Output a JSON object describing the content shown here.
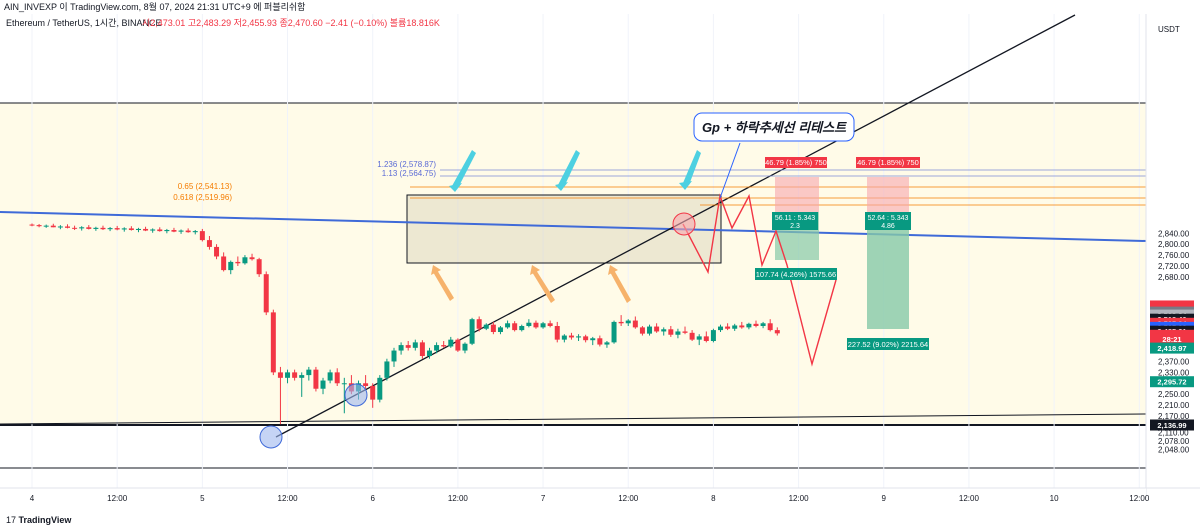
{
  "header": {
    "top_line": "AIN_INVEXP 이 TradingView.com, 8월 07, 2024 21:31 UTC+9 에 퍼블리쉬함",
    "symbol_line": "Ethereum / TetherUS, 1시간, BINANCE",
    "ohlc": "시2,473.01 고2,483.29 저2,455.93 종2,470.60 −2.41 (−0.10%) 볼륨18.816K"
  },
  "footer": {
    "brand_prefix": "17",
    "brand": "TradingView"
  },
  "annotations": {
    "callout": "Gp + 하락추세선 리테스트",
    "fib_1236": "1.236 (2,578.87)",
    "fib_113": "1.13 (2,564.75)",
    "fib_065": "0.65 (2,541.13)",
    "fib_0618": "0.618 (2,519.96)",
    "pos1_top": "46.79 (1.85%) 750",
    "pos1_mid1": "56.11 : 5.343",
    "pos1_mid2": "2.3",
    "pos1_bottom": "107.74 (4.26%) 1575.66",
    "pos2_top": "46.79 (1.85%) 750",
    "pos2_mid1": "52.64 : 5.343",
    "pos2_mid2": "4.86",
    "pos2_bottom": "227.52 (9.02%) 2215.64"
  },
  "colors": {
    "up": "#089981",
    "down": "#f23645",
    "trend": "#131722",
    "blue": "#3f6ad8",
    "fib_orange": "#f57c00",
    "cyan": "#4dd0e1",
    "arrow_orange": "#f6b26b",
    "accent": "#2962ff"
  },
  "chart_data": {
    "type": "candlestick",
    "title": "Ethereum / TetherUS, 1시간, BINANCE",
    "currency": "USDT",
    "ylim": [
      2030,
      2900
    ],
    "y_ticks": [
      2048.0,
      2078.0,
      2110.0,
      2170.0,
      2210.0,
      2250.0,
      2330.0,
      2370.0,
      2680.0,
      2720.0,
      2760.0,
      2800.0,
      2840.0
    ],
    "x_ticks": [
      {
        "label": "4",
        "t": 0
      },
      {
        "label": "12:00",
        "t": 12
      },
      {
        "label": "5",
        "t": 24
      },
      {
        "label": "12:00",
        "t": 36
      },
      {
        "label": "6",
        "t": 48
      },
      {
        "label": "12:00",
        "t": 60
      },
      {
        "label": "7",
        "t": 72
      },
      {
        "label": "12:00",
        "t": 84
      },
      {
        "label": "8",
        "t": 96
      },
      {
        "label": "12:00",
        "t": 108
      },
      {
        "label": "9",
        "t": 120
      },
      {
        "label": "12:00",
        "t": 132
      },
      {
        "label": "10",
        "t": 144
      },
      {
        "label": "12:00",
        "t": 156
      }
    ],
    "price_labels": [
      {
        "label": "2,573.50",
        "price": 2573.5,
        "color": "#f23645"
      },
      {
        "label": "2,570.03",
        "price": 2562.0,
        "color": "#f23645"
      },
      {
        "label": "2,526.71",
        "price": 2551.0,
        "color": "#787b86"
      },
      {
        "label": "2,523.24",
        "price": 2540.0,
        "color": "#b2b5be"
      },
      {
        "label": "2,518.40",
        "price": 2525.0,
        "color": "#131722"
      },
      {
        "label": "2,505.84",
        "price": 2510.0,
        "color": "#f23645"
      },
      {
        "label": "2,505.08",
        "price": 2495.0,
        "color": "#2962ff"
      },
      {
        "label": "2,485.21",
        "price": 2481.0,
        "color": "#131722"
      },
      {
        "label": "2,470.60",
        "price": 2466.0,
        "color": "#f23645"
      },
      {
        "label": "28:21",
        "price": 2453.0,
        "color": "#f23645"
      },
      {
        "label": "2,418.97",
        "price": 2418.97,
        "color": "#089981"
      },
      {
        "label": "2,295.72",
        "price": 2295.72,
        "color": "#089981"
      },
      {
        "label": "2,136.99",
        "price": 2136.99,
        "color": "#131722"
      }
    ],
    "candles": [
      [
        0,
        2872,
        2876,
        2866,
        2870
      ],
      [
        1,
        2870,
        2874,
        2862,
        2866
      ],
      [
        2,
        2866,
        2872,
        2860,
        2868
      ],
      [
        3,
        2868,
        2875,
        2862,
        2862
      ],
      [
        4,
        2862,
        2870,
        2855,
        2865
      ],
      [
        5,
        2865,
        2873,
        2858,
        2860
      ],
      [
        6,
        2860,
        2868,
        2852,
        2858
      ],
      [
        7,
        2858,
        2866,
        2850,
        2862
      ],
      [
        8,
        2862,
        2870,
        2854,
        2856
      ],
      [
        9,
        2856,
        2864,
        2849,
        2860
      ],
      [
        10,
        2860,
        2868,
        2852,
        2855
      ],
      [
        11,
        2855,
        2863,
        2848,
        2859
      ],
      [
        12,
        2859,
        2867,
        2851,
        2854
      ],
      [
        13,
        2854,
        2862,
        2846,
        2858
      ],
      [
        14,
        2858,
        2866,
        2850,
        2852
      ],
      [
        15,
        2852,
        2860,
        2844,
        2856
      ],
      [
        16,
        2856,
        2864,
        2848,
        2850
      ],
      [
        17,
        2850,
        2858,
        2842,
        2854
      ],
      [
        18,
        2854,
        2862,
        2846,
        2848
      ],
      [
        19,
        2848,
        2856,
        2840,
        2852
      ],
      [
        20,
        2852,
        2860,
        2844,
        2846
      ],
      [
        21,
        2846,
        2854,
        2838,
        2850
      ],
      [
        22,
        2850,
        2858,
        2842,
        2844
      ],
      [
        23,
        2844,
        2852,
        2836,
        2848
      ],
      [
        24,
        2848,
        2856,
        2810,
        2815
      ],
      [
        25,
        2815,
        2830,
        2780,
        2790
      ],
      [
        26,
        2790,
        2800,
        2745,
        2755
      ],
      [
        27,
        2755,
        2770,
        2700,
        2705
      ],
      [
        28,
        2705,
        2740,
        2690,
        2735
      ],
      [
        29,
        2735,
        2755,
        2720,
        2730
      ],
      [
        30,
        2730,
        2760,
        2725,
        2752
      ],
      [
        31,
        2752,
        2765,
        2740,
        2745
      ],
      [
        32,
        2745,
        2750,
        2680,
        2690
      ],
      [
        33,
        2690,
        2700,
        2540,
        2550
      ],
      [
        34,
        2550,
        2560,
        2320,
        2330
      ],
      [
        35,
        2330,
        2350,
        2140,
        2310
      ],
      [
        36,
        2310,
        2340,
        2290,
        2330
      ],
      [
        37,
        2330,
        2340,
        2300,
        2310
      ],
      [
        38,
        2310,
        2330,
        2240,
        2320
      ],
      [
        39,
        2320,
        2350,
        2300,
        2340
      ],
      [
        40,
        2340,
        2350,
        2260,
        2270
      ],
      [
        41,
        2270,
        2310,
        2250,
        2300
      ],
      [
        42,
        2300,
        2340,
        2290,
        2330
      ],
      [
        43,
        2330,
        2345,
        2280,
        2290
      ],
      [
        44,
        2290,
        2310,
        2180,
        2290
      ],
      [
        45,
        2290,
        2320,
        2250,
        2260
      ],
      [
        46,
        2260,
        2300,
        2230,
        2290
      ],
      [
        47,
        2290,
        2320,
        2270,
        2280
      ],
      [
        48,
        2280,
        2290,
        2200,
        2230
      ],
      [
        49,
        2230,
        2320,
        2220,
        2310
      ],
      [
        50,
        2310,
        2380,
        2300,
        2370
      ],
      [
        51,
        2370,
        2420,
        2350,
        2410
      ],
      [
        52,
        2410,
        2440,
        2395,
        2430
      ],
      [
        53,
        2430,
        2445,
        2410,
        2420
      ],
      [
        54,
        2420,
        2450,
        2410,
        2440
      ],
      [
        55,
        2440,
        2448,
        2380,
        2390
      ],
      [
        56,
        2390,
        2420,
        2380,
        2410
      ],
      [
        57,
        2410,
        2440,
        2400,
        2430
      ],
      [
        58,
        2430,
        2445,
        2420,
        2425
      ],
      [
        59,
        2425,
        2460,
        2420,
        2450
      ],
      [
        60,
        2450,
        2455,
        2405,
        2410
      ],
      [
        61,
        2410,
        2440,
        2400,
        2435
      ],
      [
        62,
        2435,
        2530,
        2430,
        2525
      ],
      [
        63,
        2525,
        2535,
        2480,
        2490
      ],
      [
        64,
        2490,
        2510,
        2485,
        2505
      ],
      [
        65,
        2505,
        2515,
        2470,
        2478
      ],
      [
        66,
        2478,
        2500,
        2470,
        2495
      ],
      [
        67,
        2495,
        2520,
        2490,
        2510
      ],
      [
        68,
        2510,
        2518,
        2480,
        2485
      ],
      [
        69,
        2485,
        2505,
        2480,
        2500
      ],
      [
        70,
        2500,
        2525,
        2495,
        2512
      ],
      [
        71,
        2512,
        2520,
        2490,
        2495
      ],
      [
        72,
        2495,
        2515,
        2490,
        2510
      ],
      [
        73,
        2510,
        2520,
        2495,
        2500
      ],
      [
        74,
        2500,
        2515,
        2440,
        2450
      ],
      [
        75,
        2450,
        2470,
        2440,
        2465
      ],
      [
        76,
        2465,
        2475,
        2450,
        2458
      ],
      [
        77,
        2458,
        2470,
        2445,
        2462
      ],
      [
        78,
        2462,
        2468,
        2440,
        2448
      ],
      [
        79,
        2448,
        2460,
        2430,
        2455
      ],
      [
        80,
        2455,
        2465,
        2425,
        2432
      ],
      [
        81,
        2432,
        2445,
        2420,
        2440
      ],
      [
        82,
        2440,
        2520,
        2435,
        2515
      ],
      [
        83,
        2515,
        2540,
        2500,
        2510
      ],
      [
        84,
        2510,
        2525,
        2500,
        2520
      ],
      [
        85,
        2520,
        2535,
        2490,
        2495
      ],
      [
        86,
        2495,
        2500,
        2465,
        2472
      ],
      [
        87,
        2472,
        2505,
        2465,
        2498
      ],
      [
        88,
        2498,
        2510,
        2475,
        2480
      ],
      [
        89,
        2480,
        2495,
        2465,
        2488
      ],
      [
        90,
        2488,
        2500,
        2460,
        2468
      ],
      [
        91,
        2468,
        2490,
        2455,
        2480
      ],
      [
        92,
        2480,
        2498,
        2470,
        2475
      ],
      [
        93,
        2475,
        2485,
        2445,
        2450
      ],
      [
        94,
        2450,
        2470,
        2430,
        2462
      ],
      [
        95,
        2462,
        2480,
        2440,
        2445
      ],
      [
        96,
        2445,
        2490,
        2440,
        2485
      ],
      [
        97,
        2485,
        2505,
        2478,
        2498
      ],
      [
        98,
        2498,
        2510,
        2485,
        2490
      ],
      [
        99,
        2490,
        2508,
        2482,
        2502
      ],
      [
        100,
        2502,
        2515,
        2490,
        2495
      ],
      [
        101,
        2495,
        2512,
        2488,
        2508
      ],
      [
        102,
        2508,
        2520,
        2495,
        2500
      ],
      [
        103,
        2500,
        2515,
        2492,
        2510
      ],
      [
        104,
        2510,
        2525,
        2480,
        2485
      ],
      [
        105,
        2485,
        2495,
        2465,
        2473
      ]
    ]
  }
}
